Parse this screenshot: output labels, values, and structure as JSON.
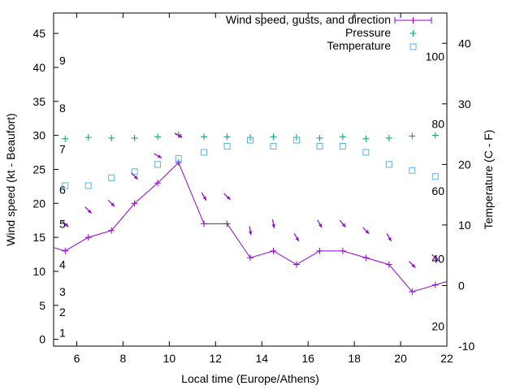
{
  "chart_data": {
    "type": "line",
    "xlabel": "Local time (Europe/Athens)",
    "ylabel": "Wind speed (kt - Beaufort)",
    "y2label": "Temperature (C - F)",
    "xlim": [
      5,
      22
    ],
    "ylim": [
      -1,
      48
    ],
    "y2lim": [
      -10,
      45
    ],
    "x_ticks": [
      6,
      8,
      10,
      12,
      14,
      16,
      18,
      20,
      22
    ],
    "y_ticks": [
      0,
      5,
      10,
      15,
      20,
      25,
      30,
      35,
      40,
      45
    ],
    "y2_ticks": [
      -10,
      0,
      10,
      20,
      30,
      40
    ],
    "grid": false,
    "legend_position": "top-right",
    "beaufort_labels": [
      {
        "label": "1",
        "y": 1
      },
      {
        "label": "2",
        "y": 4
      },
      {
        "label": "3",
        "y": 7
      },
      {
        "label": "4",
        "y": 11
      },
      {
        "label": "5",
        "y": 17
      },
      {
        "label": "6",
        "y": 22
      },
      {
        "label": "7",
        "y": 28
      },
      {
        "label": "8",
        "y": 34
      },
      {
        "label": "9",
        "y": 41
      }
    ],
    "fahrenheit_labels": [
      {
        "label": "20",
        "y2": -6.7
      },
      {
        "label": "40",
        "y2": 4.4
      },
      {
        "label": "60",
        "y2": 15.6
      },
      {
        "label": "80",
        "y2": 26.7
      },
      {
        "label": "100",
        "y2": 37.8
      }
    ],
    "colors": {
      "wind": "#9400d3",
      "pressure": "#009e73",
      "temperature": "#56b4e9",
      "gust_arrows": "#9400d3"
    },
    "series": [
      {
        "name": "Wind speed, gusts, and direction",
        "axis": "y",
        "style": "linespoints",
        "x": [
          5,
          5.5,
          6.5,
          7.5,
          8.5,
          9.5,
          10.4,
          11.5,
          12.5,
          13.5,
          14.5,
          15.5,
          16.5,
          17.5,
          18.5,
          19.5,
          20.5,
          21.5,
          22
        ],
        "y": [
          13.5,
          13,
          15,
          16,
          20,
          23,
          26,
          17,
          17,
          12,
          13,
          11,
          13,
          13,
          12,
          11,
          7,
          8,
          8.5
        ]
      },
      {
        "name": "Pressure",
        "axis": "y",
        "style": "points",
        "marker": "plus",
        "x": [
          5.5,
          6.5,
          7.5,
          8.5,
          9.5,
          10.4,
          11.5,
          12.5,
          13.5,
          14.5,
          15.5,
          16.5,
          17.5,
          18.5,
          19.5,
          20.5,
          21.5
        ],
        "y": [
          29.5,
          29.7,
          29.6,
          29.6,
          29.8,
          30.1,
          29.8,
          29.8,
          29.7,
          29.8,
          29.7,
          29.6,
          29.8,
          29.5,
          29.6,
          29.9,
          30
        ]
      },
      {
        "name": "Temperature",
        "axis": "y2",
        "style": "points",
        "marker": "square",
        "x": [
          5.5,
          6.5,
          7.5,
          8.5,
          9.5,
          10.4,
          11.5,
          12.5,
          13.5,
          14.5,
          15.5,
          16.5,
          17.5,
          18.5,
          19.5,
          20.5,
          21.5
        ],
        "y": [
          16.5,
          16.5,
          17.8,
          18.8,
          20,
          21,
          22,
          23,
          24,
          23,
          24,
          23,
          23,
          22,
          20,
          19,
          18
        ]
      }
    ],
    "gust_arrows": {
      "x": [
        5.5,
        6.5,
        7.5,
        8.5,
        9.5,
        10.4,
        11.5,
        12.5,
        13.5,
        14.5,
        15.5,
        16.5,
        17.5,
        18.5,
        19.5,
        20.5,
        21.5
      ],
      "y": [
        17,
        19,
        20,
        24,
        27,
        30,
        21,
        21,
        16,
        17,
        15,
        17,
        17,
        16,
        15,
        11,
        12
      ],
      "direction_deg": [
        315,
        315,
        315,
        315,
        300,
        300,
        330,
        315,
        350,
        350,
        330,
        330,
        320,
        315,
        330,
        315,
        315
      ]
    }
  }
}
